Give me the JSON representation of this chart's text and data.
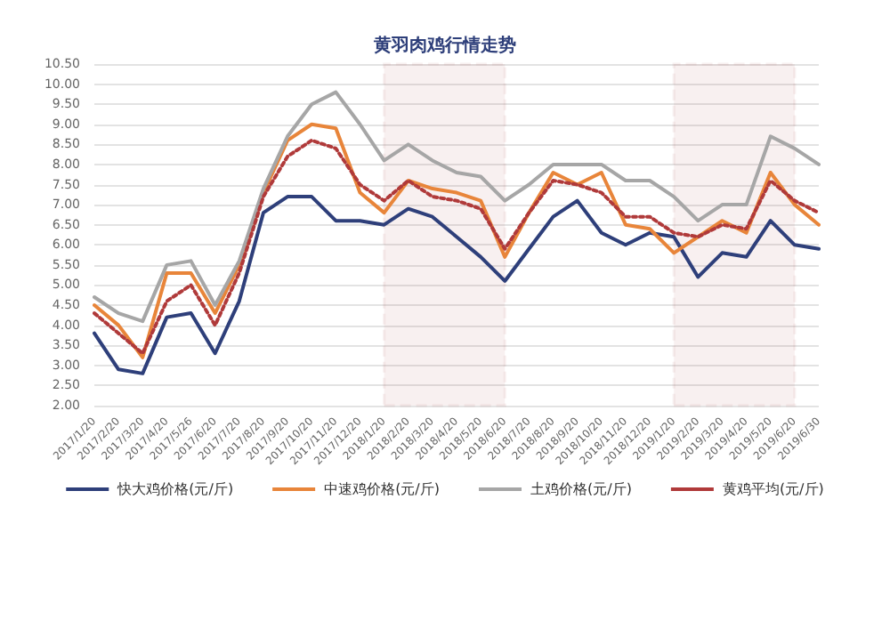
{
  "chart_data": {
    "type": "line",
    "title": "黄羽肉鸡行情走势",
    "categories": [
      "2017/1/20",
      "2017/2/20",
      "2017/3/20",
      "2017/4/20",
      "2017/5/26",
      "2017/6/20",
      "2017/7/20",
      "2017/8/20",
      "2017/9/20",
      "2017/10/20",
      "2017/11/20",
      "2017/12/20",
      "2018/1/20",
      "2018/2/20",
      "2018/3/20",
      "2018/4/20",
      "2018/5/20",
      "2018/6/20",
      "2018/7/20",
      "2018/8/20",
      "2018/9/20",
      "2018/10/20",
      "2018/11/20",
      "2018/12/20",
      "2019/1/20",
      "2019/2/20",
      "2019/3/20",
      "2019/4/20",
      "2019/5/20",
      "2019/6/20",
      "2019/6/30"
    ],
    "series": [
      {
        "name": "快大鸡价格(元/斤)",
        "color": "#2e3f7a",
        "values": [
          3.8,
          2.9,
          2.8,
          4.2,
          4.3,
          3.3,
          4.6,
          6.8,
          7.2,
          7.2,
          6.6,
          6.6,
          6.5,
          6.9,
          6.7,
          6.2,
          5.7,
          5.1,
          5.9,
          6.7,
          7.1,
          6.3,
          6.0,
          6.3,
          6.2,
          5.2,
          5.8,
          5.7,
          6.6,
          6.0,
          5.9
        ]
      },
      {
        "name": "中速鸡价格(元/斤)",
        "color": "#e8853a",
        "values": [
          4.5,
          4.0,
          3.2,
          5.3,
          5.3,
          4.3,
          5.5,
          7.3,
          8.6,
          9.0,
          8.9,
          7.3,
          6.8,
          7.6,
          7.4,
          7.3,
          7.1,
          5.7,
          6.8,
          7.8,
          7.5,
          7.8,
          6.5,
          6.4,
          5.8,
          6.2,
          6.6,
          6.3,
          7.8,
          7.0,
          6.5
        ]
      },
      {
        "name": "土鸡价格(元/斤)",
        "color": "#a6a6a6",
        "values": [
          4.7,
          4.3,
          4.1,
          5.5,
          5.6,
          4.5,
          5.6,
          7.4,
          8.7,
          9.5,
          9.8,
          9.0,
          8.1,
          8.5,
          8.1,
          7.8,
          7.7,
          7.1,
          7.5,
          8.0,
          8.0,
          8.0,
          7.6,
          7.6,
          7.2,
          6.6,
          7.0,
          7.0,
          8.7,
          8.4,
          8.0
        ]
      },
      {
        "name": "黄鸡平均(元/斤)",
        "color": "#b03a3a",
        "line_style": "dotted",
        "values": [
          4.3,
          3.8,
          3.3,
          4.6,
          5.0,
          4.0,
          5.3,
          7.2,
          8.2,
          8.6,
          8.4,
          7.5,
          7.1,
          7.6,
          7.2,
          7.1,
          6.9,
          5.9,
          6.8,
          7.6,
          7.5,
          7.3,
          6.7,
          6.7,
          6.3,
          6.2,
          6.5,
          6.4,
          7.6,
          7.1,
          6.8
        ]
      }
    ],
    "ylim": [
      2,
      10.5
    ],
    "yticks": [
      {
        "value": 2,
        "label": "2.00"
      },
      {
        "value": 2.5,
        "label": "2.50"
      },
      {
        "value": 3,
        "label": "3.00"
      },
      {
        "value": 3.5,
        "label": "3.50"
      },
      {
        "value": 4,
        "label": "4.00"
      },
      {
        "value": 4.5,
        "label": "4.50"
      },
      {
        "value": 5,
        "label": "5.00"
      },
      {
        "value": 5.5,
        "label": "5.50"
      },
      {
        "value": 6,
        "label": "6.00"
      },
      {
        "value": 6.5,
        "label": "6.50"
      },
      {
        "value": 7,
        "label": "7.00"
      },
      {
        "value": 7.5,
        "label": "7.50"
      },
      {
        "value": 8,
        "label": "8.00"
      },
      {
        "value": 8.5,
        "label": "8.50"
      },
      {
        "value": 9,
        "label": "9.00"
      },
      {
        "value": 9.5,
        "label": "9.50"
      },
      {
        "value": 10,
        "label": "10.00"
      },
      {
        "value": 10.5,
        "label": "10.50"
      }
    ],
    "bands": [
      {
        "axis": "x",
        "from": "2018/1/20",
        "to": "2018/6/20",
        "color": "#a33a3a"
      },
      {
        "axis": "x",
        "from": "2019/1/20",
        "to": "2019/6/20",
        "color": "#a33a3a"
      }
    ],
    "grid": "y",
    "legend": "bottom",
    "marker": "none",
    "line_style": "solid"
  }
}
